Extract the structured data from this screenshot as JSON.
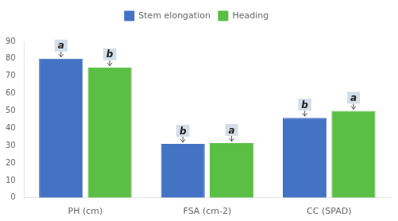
{
  "chart_data": {
    "type": "bar",
    "categories": [
      "PH (cm)",
      "FSA (cm-2)",
      "CC (SPAD)"
    ],
    "series": [
      {
        "name": "Stem elongation",
        "color": "#4472C4",
        "values": [
          80,
          31,
          46
        ],
        "annotations": [
          "a",
          "b",
          "b"
        ]
      },
      {
        "name": "Heading",
        "color": "#5BBE45",
        "values": [
          75,
          31.5,
          50
        ],
        "annotations": [
          "b",
          "a",
          "a"
        ]
      }
    ],
    "ylim": [
      0,
      90
    ],
    "yticks": [
      0,
      10,
      20,
      30,
      40,
      50,
      60,
      70,
      80,
      90
    ],
    "grid": false,
    "legend": "top"
  }
}
